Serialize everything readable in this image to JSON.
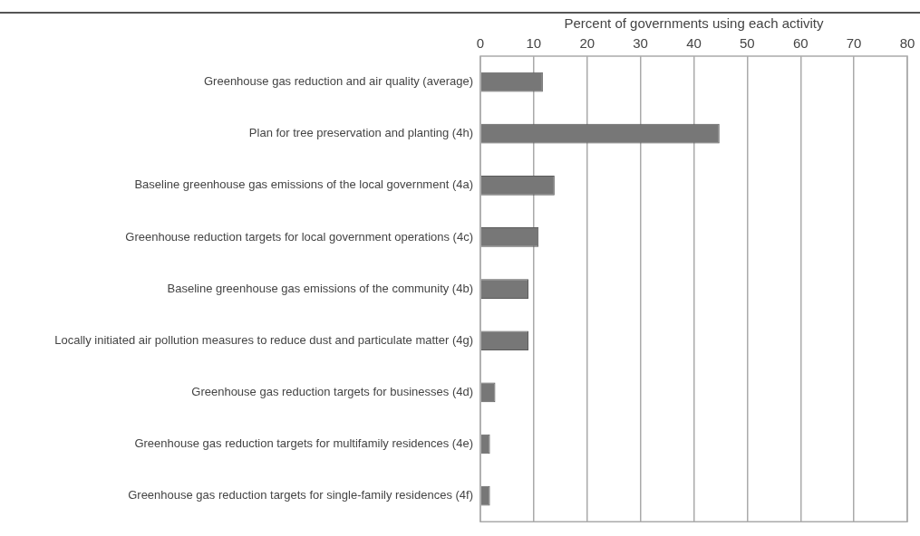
{
  "chart_data": {
    "type": "bar",
    "orientation": "horizontal",
    "xlabel": "Percent of governments using each activity",
    "categories": [
      "Greenhouse gas reduction and air quality (average)",
      "Plan for tree preservation and planting (4h)",
      "Baseline greenhouse gas emissions of the local government (4a)",
      "Greenhouse reduction targets for local government operations (4c)",
      "Baseline greenhouse gas emissions of the community (4b)",
      "Locally initiated air pollution measures to reduce dust and particulate matter (4g)",
      "Greenhouse gas reduction targets for businesses (4d)",
      "Greenhouse gas reduction targets for multifamily residences (4e)",
      "Greenhouse gas reduction targets for single-family residences (4f)"
    ],
    "values": [
      11.7,
      44.8,
      13.9,
      10.9,
      9.0,
      9.0,
      2.8,
      1.8,
      1.8
    ],
    "color": "#777777",
    "xlim": [
      0,
      80
    ],
    "xticks": [
      0,
      10,
      20,
      30,
      40,
      50,
      60,
      70,
      80
    ],
    "grid": "x",
    "legend": false
  }
}
